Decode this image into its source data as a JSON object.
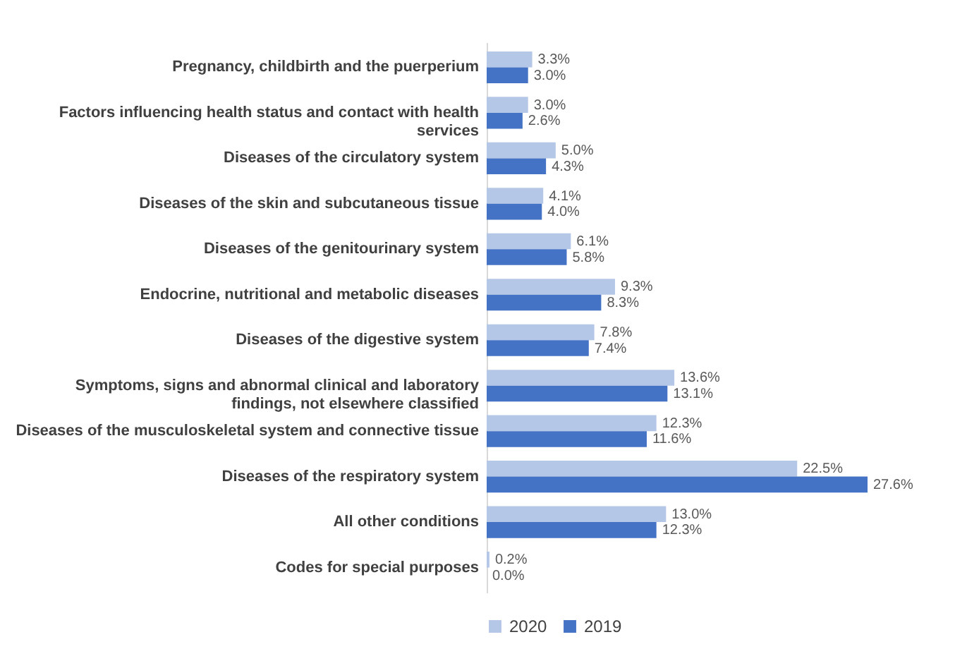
{
  "chart_data": {
    "type": "bar",
    "orientation": "horizontal",
    "legend": "bottom",
    "categories": [
      "Pregnancy, childbirth and the puerperium",
      "Factors influencing health status and contact with health services",
      "Diseases of the circulatory system",
      "Diseases of the skin and subcutaneous tissue",
      "Diseases of the genitourinary system",
      "Endocrine, nutritional and metabolic diseases",
      "Diseases of the digestive system",
      "Symptoms, signs and abnormal clinical and laboratory findings, not elsewhere classified",
      "Diseases of the musculoskeletal system and connective tissue",
      "Diseases of the respiratory system",
      "All other conditions",
      "Codes for special purposes"
    ],
    "series": [
      {
        "name": "2020",
        "color": "#b4c7e7",
        "values": [
          3.3,
          3.0,
          5.0,
          4.1,
          6.1,
          9.3,
          7.8,
          13.6,
          12.3,
          22.5,
          13.0,
          0.2
        ],
        "value_labels": [
          "3.3%",
          "3.0%",
          "5.0%",
          "4.1%",
          "6.1%",
          "9.3%",
          "7.8%",
          "13.6%",
          "12.3%",
          "22.5%",
          "13.0%",
          "0.2%"
        ]
      },
      {
        "name": "2019",
        "color": "#4472c4",
        "values": [
          3.0,
          2.6,
          4.3,
          4.0,
          5.8,
          8.3,
          7.4,
          13.1,
          11.6,
          27.6,
          12.3,
          0.0
        ],
        "value_labels": [
          "3.0%",
          "2.6%",
          "4.3%",
          "4.0%",
          "5.8%",
          "8.3%",
          "7.4%",
          "13.1%",
          "11.6%",
          "27.6%",
          "12.3%",
          "0.0%"
        ]
      }
    ]
  }
}
